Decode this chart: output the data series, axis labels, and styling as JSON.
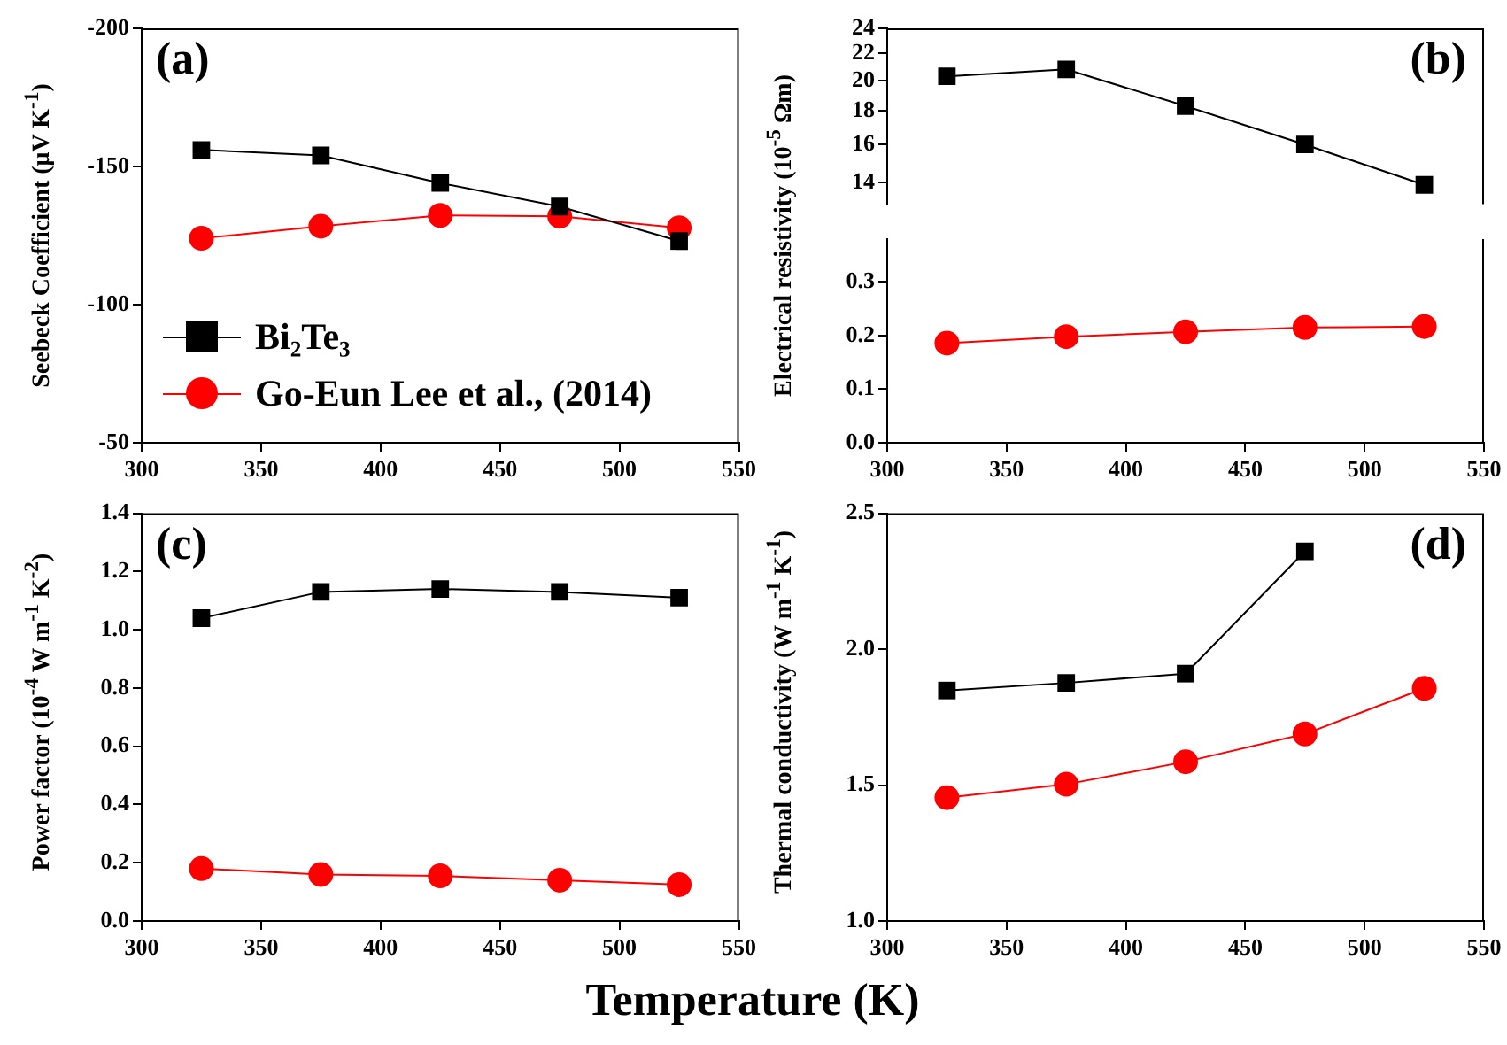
{
  "chart_data": [
    {
      "type": "line",
      "title": "(a)",
      "ylabel": "Seebeck Coefficient (μV K$^{-1}$)",
      "x": [
        325,
        375,
        425,
        475,
        525
      ],
      "xlim": [
        300,
        550
      ],
      "xticks": [
        300,
        350,
        400,
        450,
        500,
        550
      ],
      "ylim": [
        -50,
        -200
      ],
      "yticks": [
        -200,
        -150,
        -100,
        -50
      ],
      "legend": "bottom left",
      "series": [
        {
          "name": "Bi₂Te₃",
          "color": "#000000",
          "marker": "square",
          "values": [
            -156,
            -154,
            -144,
            -135.5,
            -123
          ]
        },
        {
          "name": "Go-Eun Lee et al., (2014)",
          "color": "#ff0000",
          "marker": "circle",
          "values": [
            -124,
            -128.4,
            -132.3,
            -132,
            -127.8
          ]
        }
      ]
    },
    {
      "type": "line",
      "title": "(b)",
      "ylabel": "Electrical resistivity (10$^{-5}$ Ωm)",
      "x": [
        325,
        375,
        425,
        475,
        525
      ],
      "xlim": [
        300,
        550
      ],
      "ylim": [
        13,
        24
      ],
      "yticks": [
        14,
        16,
        18,
        20,
        22,
        24
      ],
      "log": true,
      "tick_labels": "y",
      "series": [
        {
          "color": "#000000",
          "marker": "square",
          "values": [
            20.3,
            20.8,
            18.3,
            16.0,
            13.9
          ]
        }
      ]
    },
    {
      "type": "line",
      "x": [
        325,
        375,
        425,
        475,
        525
      ],
      "xlim": [
        300,
        550
      ],
      "xticks": [
        300,
        350,
        400,
        450,
        500,
        550
      ],
      "ylim": [
        0,
        0.38
      ],
      "yticks": [
        {
          "value": 0,
          "label": "0.0"
        },
        0.1,
        0.2,
        0.3
      ],
      "series": [
        {
          "color": "#ff0000",
          "marker": "circle",
          "values": [
            0.186,
            0.198,
            0.207,
            0.215,
            0.217
          ]
        }
      ]
    },
    {
      "type": "line",
      "title": "(c)",
      "ylabel": "Power factor (10$^{-4}$ W m$^{-1}$ K$^{-2}$)",
      "xlabel": "Temperature (K)",
      "x": [
        325,
        375,
        425,
        475,
        525
      ],
      "xlim": [
        300,
        550
      ],
      "xticks": [
        300,
        350,
        400,
        450,
        500,
        550
      ],
      "ylim": [
        0,
        1.4
      ],
      "yticks": [
        {
          "value": 0,
          "label": "0.0"
        },
        0.2,
        0.4,
        0.6,
        0.8,
        {
          "value": 1,
          "label": "1.0"
        },
        1.2,
        1.4
      ],
      "series": [
        {
          "color": "#000000",
          "marker": "square",
          "values": [
            1.04,
            1.13,
            1.14,
            1.13,
            1.11
          ]
        },
        {
          "color": "#ff0000",
          "marker": "circle",
          "values": [
            0.18,
            0.16,
            0.155,
            0.14,
            0.125
          ]
        }
      ]
    },
    {
      "type": "line",
      "title": "(d)",
      "ylabel": "Thermal conductivity (W m$^{-1}$ K$^{-1}$)",
      "x": [
        325,
        375,
        425,
        475,
        525
      ],
      "xlim": [
        300,
        550
      ],
      "xticks": [
        300,
        350,
        400,
        450,
        500,
        550
      ],
      "ylim": [
        1,
        2.5
      ],
      "yticks": [
        {
          "value": 1,
          "label": "1.0"
        },
        1.5,
        {
          "value": 2,
          "label": "2.0"
        },
        2.5
      ],
      "series": [
        {
          "color": "#000000",
          "marker": "square",
          "values": [
            1.848,
            1.876,
            1.91,
            2.36,
            null
          ]
        },
        {
          "color": "#ff0000",
          "marker": "circle",
          "values": [
            1.454,
            1.503,
            1.586,
            1.688,
            1.856
          ]
        }
      ]
    }
  ]
}
